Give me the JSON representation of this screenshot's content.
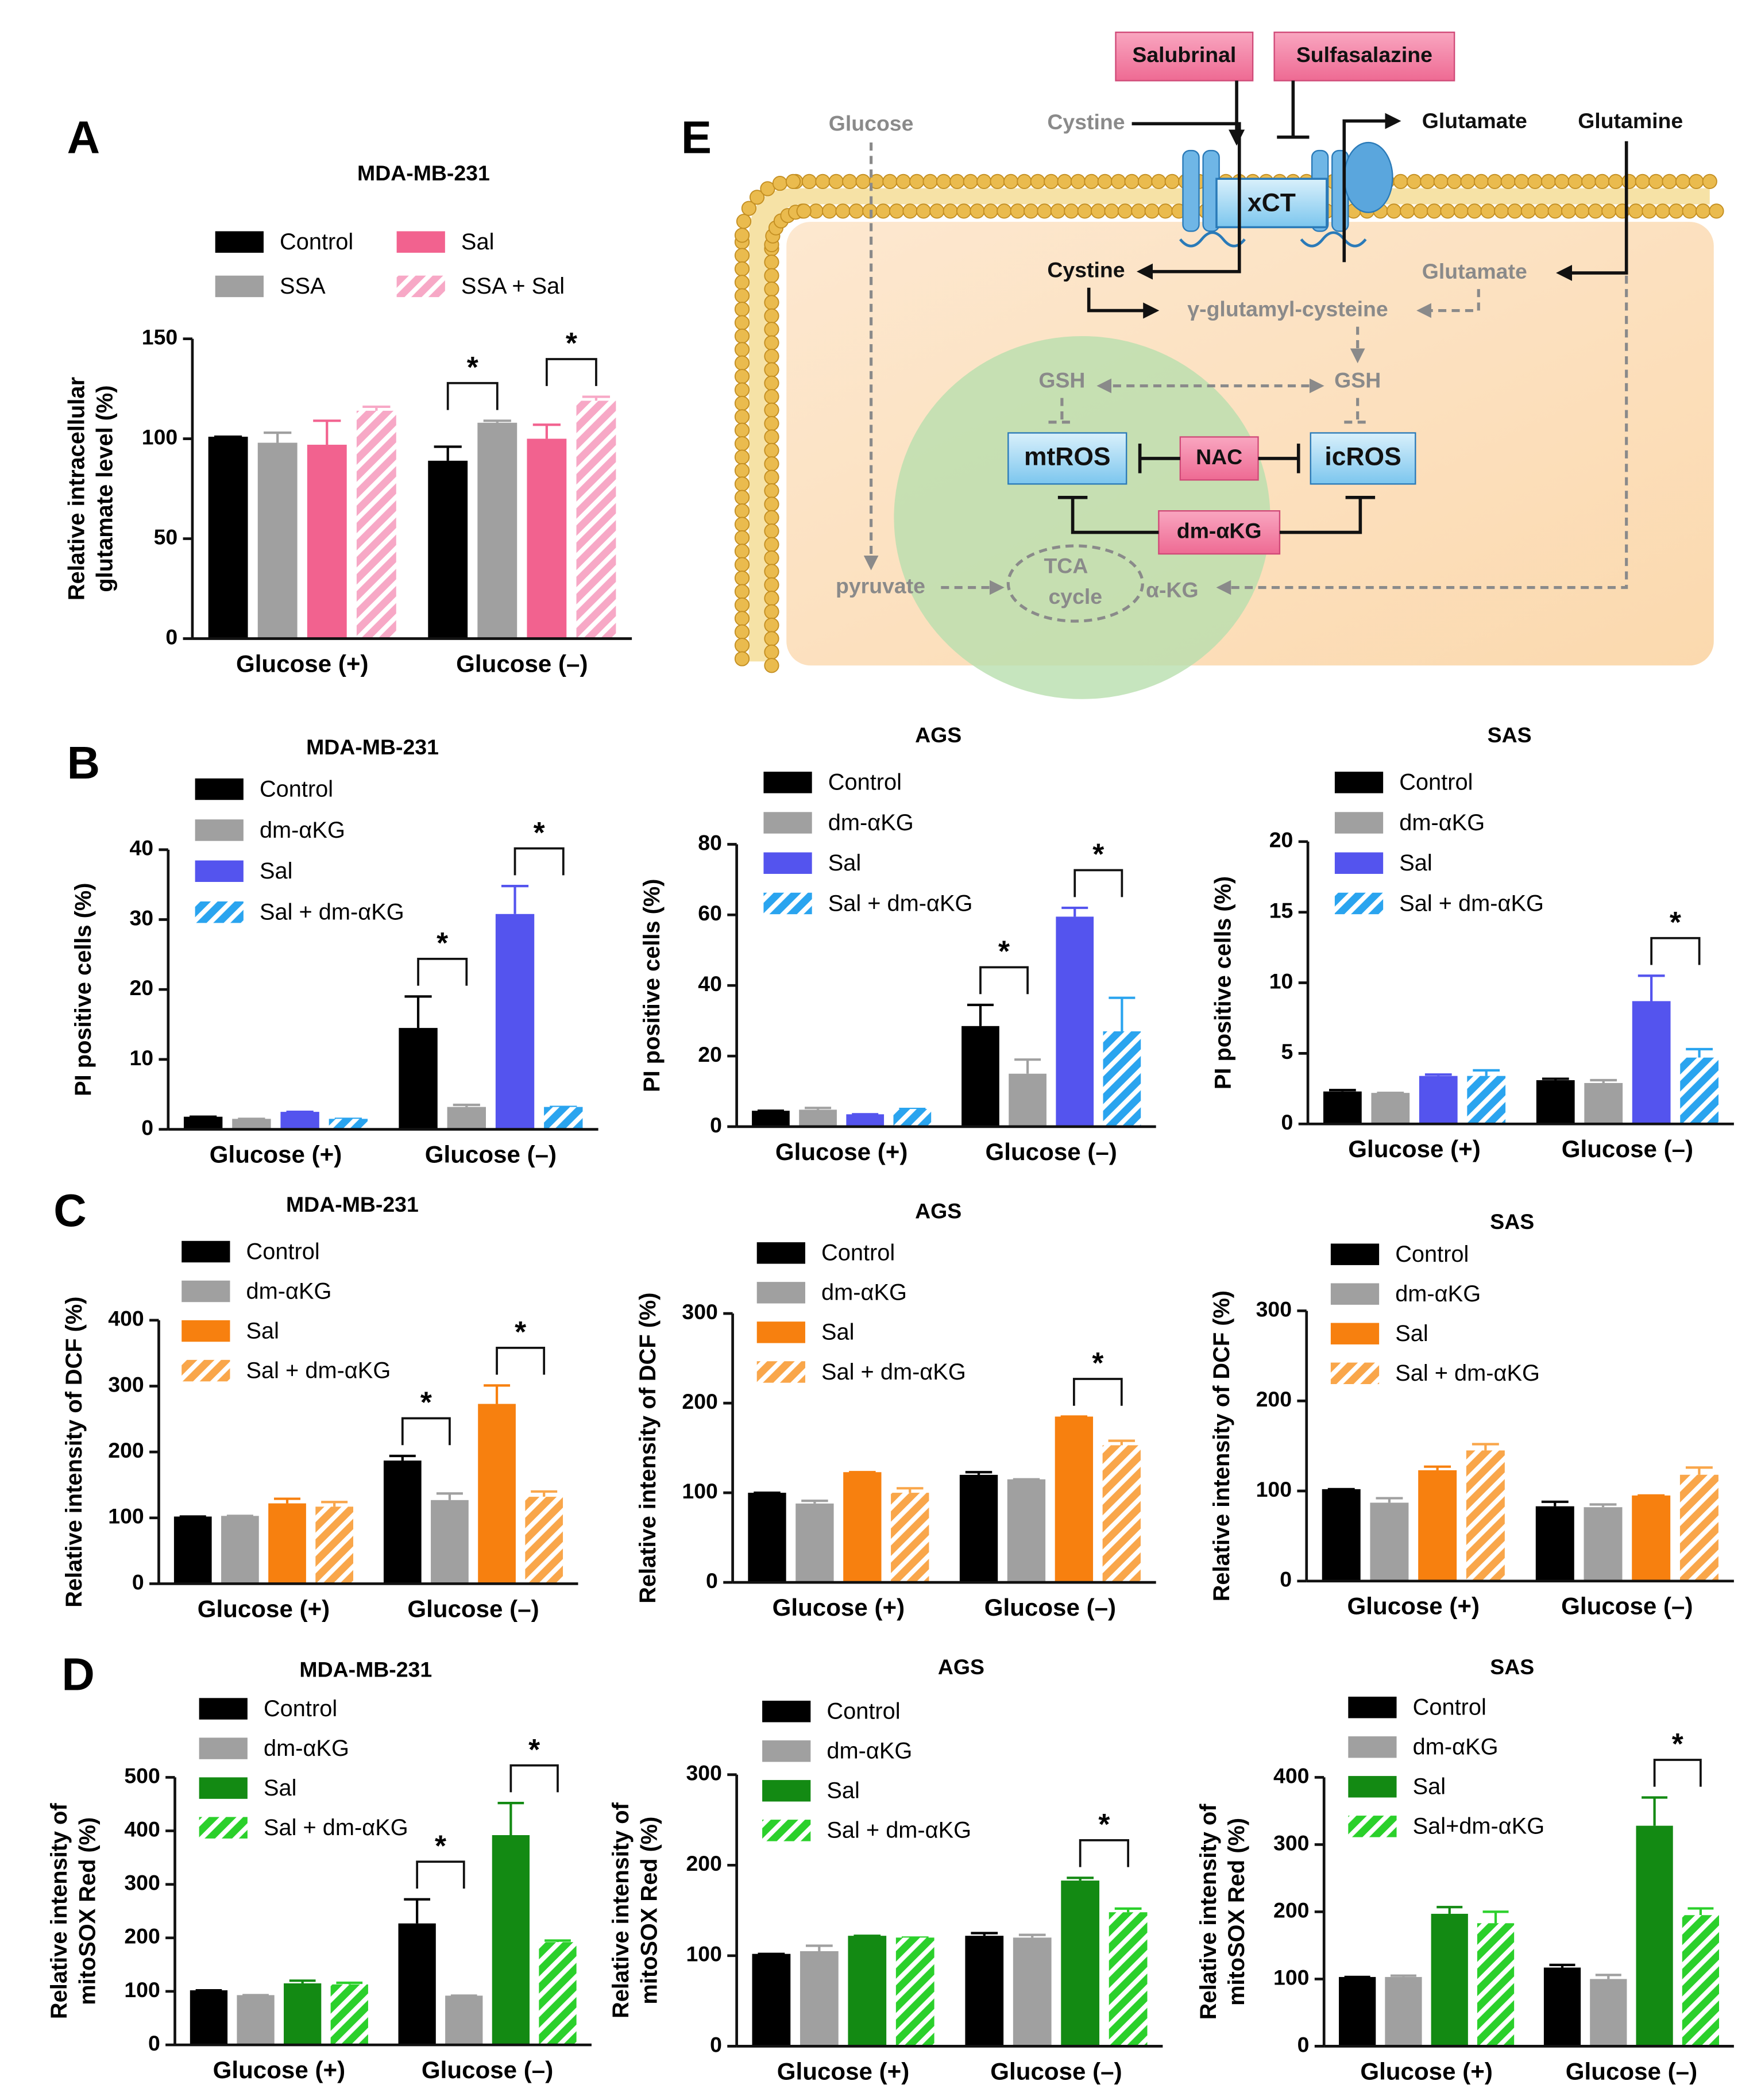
{
  "chart_data": [
    {
      "type": "bar",
      "panel": "A",
      "title": "MDA-MB-231",
      "y_label": [
        "Relative intracellular",
        "glutamate level (%)"
      ],
      "categories": [
        "Glucose (+)",
        "Glucose (–)"
      ],
      "series": [
        {
          "name": "Control",
          "color": "#000000",
          "hatch": false,
          "values": [
            101,
            89
          ],
          "errors": [
            0,
            7
          ]
        },
        {
          "name": "SSA",
          "color": "#a0a0a0",
          "hatch": false,
          "values": [
            98,
            108
          ],
          "errors": [
            5,
            1
          ]
        },
        {
          "name": "Sal",
          "color": "#f2628f",
          "hatch": false,
          "values": [
            97,
            100
          ],
          "errors": [
            12,
            7
          ]
        },
        {
          "name": "SSA + Sal",
          "color": "#f7a8c6",
          "hatch": true,
          "values": [
            114,
            119
          ],
          "errors": [
            2,
            2
          ]
        }
      ],
      "ylim": [
        0,
        150
      ],
      "yticks": [
        0,
        50,
        100,
        150
      ],
      "legend_columns": 2,
      "significance": [
        {
          "label": "*",
          "category": 1,
          "series": [
            0,
            1
          ]
        },
        {
          "label": "*",
          "category": 1,
          "series": [
            2,
            3
          ]
        }
      ]
    },
    {
      "type": "bar",
      "panel": "B",
      "title": "MDA-MB-231",
      "y_label": [
        "PI positive cells (%)"
      ],
      "categories": [
        "Glucose (+)",
        "Glucose (–)"
      ],
      "series": [
        {
          "name": "Control",
          "color": "#000000",
          "hatch": false,
          "values": [
            1.8,
            14.5
          ],
          "errors": [
            0,
            4.5
          ]
        },
        {
          "name": "dm-αKG",
          "color": "#a0a0a0",
          "hatch": false,
          "values": [
            1.5,
            3.2
          ],
          "errors": [
            0,
            0.3
          ]
        },
        {
          "name": "Sal",
          "color": "#5454ee",
          "hatch": false,
          "values": [
            2.5,
            30.8
          ],
          "errors": [
            0,
            4
          ]
        },
        {
          "name": "Sal + dm-αKG",
          "color": "#2aa4ef",
          "hatch": true,
          "values": [
            1.5,
            3.2
          ],
          "errors": [
            0,
            0
          ]
        }
      ],
      "ylim": [
        0,
        40
      ],
      "yticks": [
        0,
        10,
        20,
        30,
        40
      ],
      "significance": [
        {
          "label": "*",
          "category": 1,
          "series": [
            0,
            1
          ]
        },
        {
          "label": "*",
          "category": 1,
          "series": [
            2,
            3
          ]
        }
      ]
    },
    {
      "type": "bar",
      "title": "AGS",
      "y_label": [
        "PI positive cells (%)"
      ],
      "categories": [
        "Glucose (+)",
        "Glucose (–)"
      ],
      "series": [
        {
          "name": "Control",
          "color": "#000000",
          "hatch": false,
          "values": [
            4.5,
            28.5
          ],
          "errors": [
            0,
            6
          ]
        },
        {
          "name": "dm-αKG",
          "color": "#a0a0a0",
          "hatch": false,
          "values": [
            4.8,
            15
          ],
          "errors": [
            0.5,
            4
          ]
        },
        {
          "name": "Sal",
          "color": "#5454ee",
          "hatch": false,
          "values": [
            3.5,
            59.5
          ],
          "errors": [
            0,
            2.5
          ]
        },
        {
          "name": "Sal + dm-αKG",
          "color": "#2aa4ef",
          "hatch": true,
          "values": [
            5,
            27
          ],
          "errors": [
            0,
            9.5
          ]
        }
      ],
      "ylim": [
        0,
        80
      ],
      "yticks": [
        0,
        20,
        40,
        60,
        80
      ],
      "significance": [
        {
          "label": "*",
          "category": 1,
          "series": [
            0,
            1
          ]
        },
        {
          "label": "*",
          "category": 1,
          "series": [
            2,
            3
          ]
        }
      ]
    },
    {
      "type": "bar",
      "title": "SAS",
      "y_label": [
        "PI positive cells (%)"
      ],
      "categories": [
        "Glucose (+)",
        "Glucose (–)"
      ],
      "series": [
        {
          "name": "Control",
          "color": "#000000",
          "hatch": false,
          "values": [
            2.3,
            3.1
          ],
          "errors": [
            0.1,
            0.1
          ]
        },
        {
          "name": "dm-αKG",
          "color": "#a0a0a0",
          "hatch": false,
          "values": [
            2.2,
            2.9
          ],
          "errors": [
            0,
            0.2
          ]
        },
        {
          "name": "Sal",
          "color": "#5454ee",
          "hatch": false,
          "values": [
            3.4,
            8.7
          ],
          "errors": [
            0.1,
            1.8
          ]
        },
        {
          "name": "Sal + dm-αKG",
          "color": "#2aa4ef",
          "hatch": true,
          "values": [
            3.4,
            4.7
          ],
          "errors": [
            0.4,
            0.6
          ]
        }
      ],
      "ylim": [
        0,
        20
      ],
      "yticks": [
        0,
        5,
        10,
        15,
        20
      ],
      "significance": [
        {
          "label": "*",
          "category": 1,
          "series": [
            2,
            3
          ]
        }
      ]
    },
    {
      "type": "bar",
      "panel": "C",
      "title": "MDA-MB-231",
      "y_label": [
        "Relative intensity of  DCF (%)"
      ],
      "categories": [
        "Glucose (+)",
        "Glucose (–)"
      ],
      "series": [
        {
          "name": "Control",
          "color": "#000000",
          "hatch": false,
          "values": [
            102,
            187
          ],
          "errors": [
            0,
            7
          ]
        },
        {
          "name": "dm-αKG",
          "color": "#a0a0a0",
          "hatch": false,
          "values": [
            103,
            127
          ],
          "errors": [
            0,
            10
          ]
        },
        {
          "name": "Sal",
          "color": "#f7800f",
          "hatch": false,
          "values": [
            122,
            273
          ],
          "errors": [
            7,
            28
          ]
        },
        {
          "name": "Sal + dm-αKG",
          "color": "#f9a64a",
          "hatch": true,
          "values": [
            117,
            132
          ],
          "errors": [
            7,
            8
          ]
        }
      ],
      "ylim": [
        0,
        400
      ],
      "yticks": [
        0,
        100,
        200,
        300,
        400
      ],
      "significance": [
        {
          "label": "*",
          "category": 1,
          "series": [
            0,
            1
          ]
        },
        {
          "label": "*",
          "category": 1,
          "series": [
            2,
            3
          ]
        }
      ]
    },
    {
      "type": "bar",
      "title": "AGS",
      "y_label": [
        "Relative intensity of  DCF (%)"
      ],
      "categories": [
        "Glucose (+)",
        "Glucose (–)"
      ],
      "series": [
        {
          "name": "Control",
          "color": "#000000",
          "hatch": false,
          "values": [
            100,
            120
          ],
          "errors": [
            0,
            3
          ]
        },
        {
          "name": "dm-αKG",
          "color": "#a0a0a0",
          "hatch": false,
          "values": [
            88,
            115
          ],
          "errors": [
            3,
            0
          ]
        },
        {
          "name": "Sal",
          "color": "#f7800f",
          "hatch": false,
          "values": [
            123,
            185
          ],
          "errors": [
            0,
            0
          ]
        },
        {
          "name": "Sal + dm-αKG",
          "color": "#f9a64a",
          "hatch": true,
          "values": [
            100,
            153
          ],
          "errors": [
            5,
            5
          ]
        }
      ],
      "ylim": [
        0,
        300
      ],
      "yticks": [
        0,
        100,
        200,
        300
      ],
      "significance": [
        {
          "label": "*",
          "category": 1,
          "series": [
            2,
            3
          ]
        }
      ]
    },
    {
      "type": "bar",
      "title": "SAS",
      "y_label": [
        "Relative intensity of  DCF (%)"
      ],
      "categories": [
        "Glucose (+)",
        "Glucose (–)"
      ],
      "series": [
        {
          "name": "Control",
          "color": "#000000",
          "hatch": false,
          "values": [
            102,
            83
          ],
          "errors": [
            0,
            5
          ]
        },
        {
          "name": "dm-αKG",
          "color": "#a0a0a0",
          "hatch": false,
          "values": [
            87,
            82
          ],
          "errors": [
            5,
            3
          ]
        },
        {
          "name": "Sal",
          "color": "#f7800f",
          "hatch": false,
          "values": [
            123,
            95
          ],
          "errors": [
            4,
            0
          ]
        },
        {
          "name": "Sal + dm-αKG",
          "color": "#f9a64a",
          "hatch": true,
          "values": [
            145,
            118
          ],
          "errors": [
            7,
            8
          ]
        }
      ],
      "ylim": [
        0,
        300
      ],
      "yticks": [
        0,
        100,
        200,
        300
      ],
      "significance": []
    },
    {
      "type": "bar",
      "panel": "D",
      "title": "MDA-MB-231",
      "y_label": [
        "Relative intensity of",
        "mitoSOX Red (%)"
      ],
      "categories": [
        "Glucose (+)",
        "Glucose (–)"
      ],
      "series": [
        {
          "name": "Control",
          "color": "#000000",
          "hatch": false,
          "values": [
            102,
            227
          ],
          "errors": [
            0,
            45
          ]
        },
        {
          "name": "dm-αKG",
          "color": "#a0a0a0",
          "hatch": false,
          "values": [
            93,
            92
          ],
          "errors": [
            0,
            0
          ]
        },
        {
          "name": "Sal",
          "color": "#138a13",
          "hatch": false,
          "values": [
            115,
            392
          ],
          "errors": [
            5,
            60
          ]
        },
        {
          "name": "Sal + dm-αKG",
          "color": "#2bd02b",
          "hatch": true,
          "values": [
            113,
            192
          ],
          "errors": [
            3,
            3
          ]
        }
      ],
      "ylim": [
        0,
        500
      ],
      "yticks": [
        0,
        100,
        200,
        300,
        400,
        500
      ],
      "significance": [
        {
          "label": "*",
          "category": 1,
          "series": [
            0,
            1
          ]
        },
        {
          "label": "*",
          "category": 1,
          "series": [
            2,
            3
          ]
        }
      ]
    },
    {
      "type": "bar",
      "title": "AGS",
      "y_label": [
        "Relative intensity of",
        "mitoSOX Red (%)"
      ],
      "categories": [
        "Glucose (+)",
        "Glucose (–)"
      ],
      "series": [
        {
          "name": "Control",
          "color": "#000000",
          "hatch": false,
          "values": [
            102,
            122
          ],
          "errors": [
            0,
            3
          ]
        },
        {
          "name": "dm-αKG",
          "color": "#a0a0a0",
          "hatch": false,
          "values": [
            105,
            120
          ],
          "errors": [
            6,
            3
          ]
        },
        {
          "name": "Sal",
          "color": "#138a13",
          "hatch": false,
          "values": [
            122,
            183
          ],
          "errors": [
            0,
            3
          ]
        },
        {
          "name": "Sal + dm-αKG",
          "color": "#2bd02b",
          "hatch": true,
          "values": [
            120,
            148
          ],
          "errors": [
            0,
            4
          ]
        }
      ],
      "ylim": [
        0,
        300
      ],
      "yticks": [
        0,
        100,
        200,
        300
      ],
      "significance": [
        {
          "label": "*",
          "category": 1,
          "series": [
            2,
            3
          ]
        }
      ]
    },
    {
      "type": "bar",
      "title": "SAS",
      "y_label": [
        "Relative intensity of",
        "mitoSOX Red (%)"
      ],
      "categories": [
        "Glucose (+)",
        "Glucose (–)"
      ],
      "series": [
        {
          "name": "Control",
          "color": "#000000",
          "hatch": false,
          "values": [
            103,
            117
          ],
          "errors": [
            0,
            4
          ]
        },
        {
          "name": "dm-αKG",
          "color": "#a0a0a0",
          "hatch": false,
          "values": [
            103,
            100
          ],
          "errors": [
            2,
            6
          ]
        },
        {
          "name": "Sal",
          "color": "#138a13",
          "hatch": false,
          "values": [
            197,
            328
          ],
          "errors": [
            10,
            42
          ]
        },
        {
          "name": "Sal+dm-αKG",
          "color": "#2bd02b",
          "hatch": true,
          "values": [
            183,
            195
          ],
          "errors": [
            17,
            10
          ]
        }
      ],
      "ylim": [
        0,
        400
      ],
      "yticks": [
        0,
        100,
        200,
        300,
        400
      ],
      "significance": [
        {
          "label": "*",
          "category": 1,
          "series": [
            2,
            3
          ]
        }
      ]
    }
  ],
  "diagram": {
    "panel": "E",
    "labels": [
      "Salubrinal",
      "Sulfasalazine",
      "Glucose",
      "Cystine",
      "Glutamate",
      "Glutamine",
      "xCT",
      "Cystine",
      "Glutamate",
      "γ-glutamyl-cysteine",
      "GSH",
      "GSH",
      "mtROS",
      "NAC",
      "icROS",
      "dm-αKG",
      "TCA",
      "cycle",
      "pyruvate",
      "α-KG"
    ]
  }
}
